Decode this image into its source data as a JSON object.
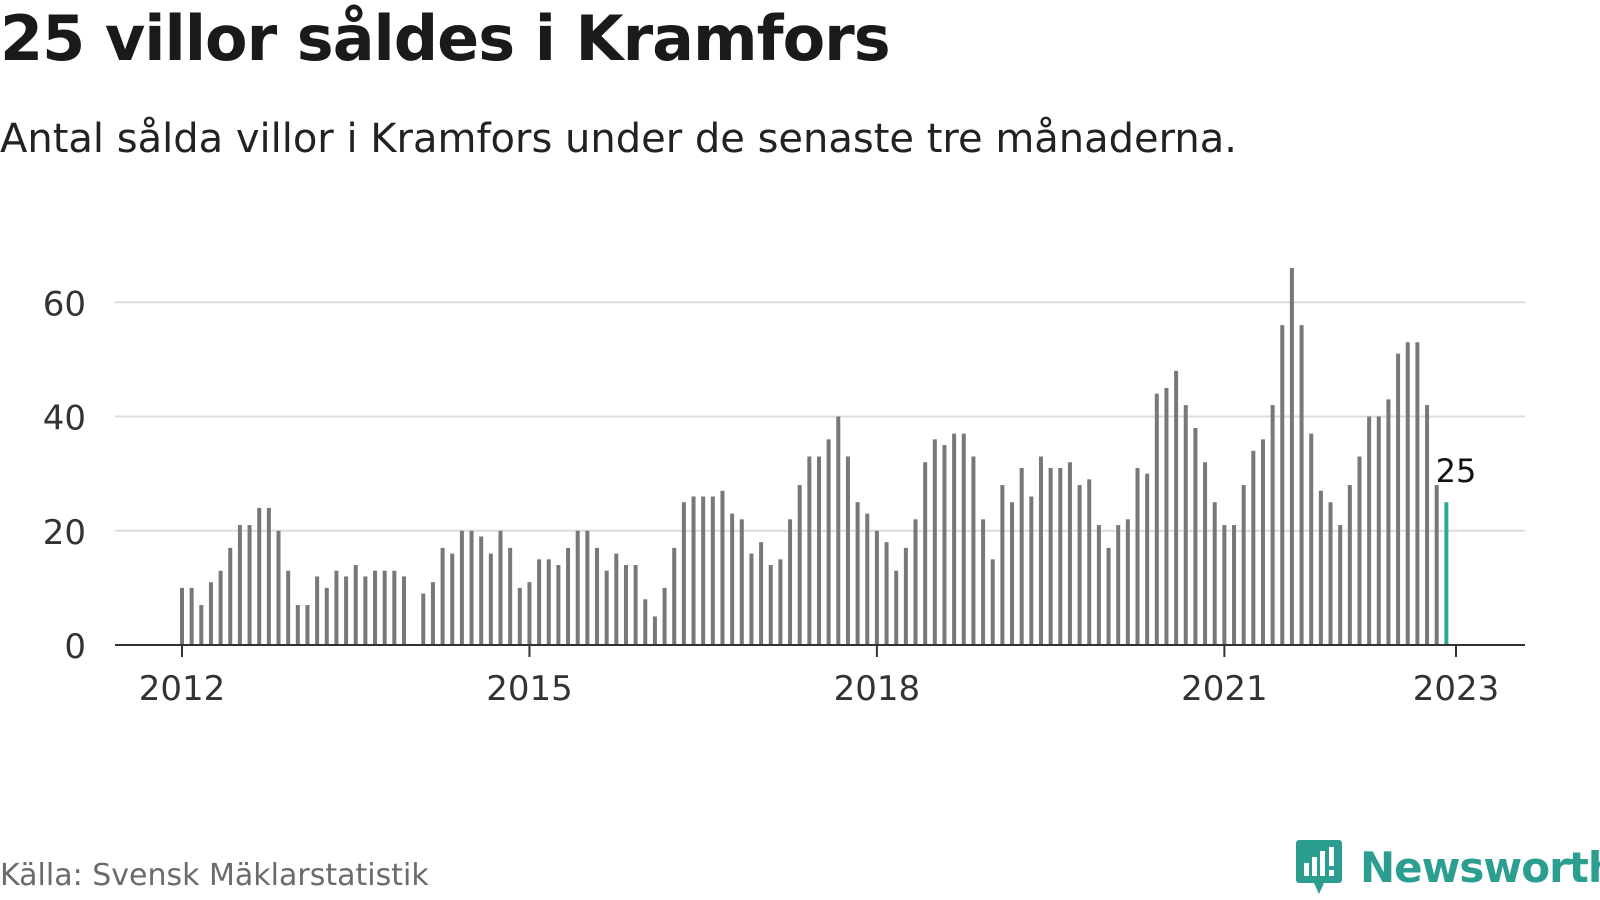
{
  "header": {
    "title": "25 villor såldes i Kramfors",
    "subtitle": "Antal sålda villor i Kramfors under de senaste tre månaderna."
  },
  "footer": {
    "source": "Källa: Svensk Mäklarstatistik",
    "brand": "Newsworthy"
  },
  "colors": {
    "bar": "#77777c",
    "highlight": "#2ca89a",
    "grid": "#dcdcdc",
    "axis": "#333333",
    "brand": "#2c9e90"
  },
  "chart_data": {
    "type": "bar",
    "title": "25 villor såldes i Kramfors",
    "subtitle": "Antal sålda villor i Kramfors under de senaste tre månaderna.",
    "xlabel": "",
    "ylabel": "",
    "ylim": [
      0,
      66
    ],
    "yticks": [
      0,
      20,
      40,
      60
    ],
    "grid": true,
    "x_start": "2012-01",
    "x_end": "2023-01",
    "x_ticks": [
      {
        "label": "2012",
        "date": "2012-01"
      },
      {
        "label": "2015",
        "date": "2015-01"
      },
      {
        "label": "2018",
        "date": "2018-01"
      },
      {
        "label": "2021",
        "date": "2021-01"
      },
      {
        "label": "2023",
        "date": "2023-01"
      }
    ],
    "series": [
      {
        "values": [
          10,
          10,
          7,
          11,
          13,
          17,
          21,
          21,
          24,
          24,
          20,
          13,
          7,
          7,
          12,
          10,
          13,
          12,
          14,
          12,
          13,
          13,
          13,
          12,
          null,
          9,
          11,
          17,
          16,
          20,
          20,
          19,
          16,
          20,
          17,
          10,
          11,
          15,
          15,
          14,
          17,
          20,
          20,
          17,
          13,
          16,
          14,
          14,
          8,
          5,
          10,
          17,
          25,
          26,
          26,
          26,
          27,
          23,
          22,
          16,
          18,
          14,
          15,
          22,
          28,
          33,
          33,
          36,
          40,
          33,
          25,
          23,
          20,
          18,
          13,
          17,
          22,
          32,
          36,
          35,
          37,
          37,
          33,
          22,
          15,
          28,
          25,
          31,
          26,
          33,
          31,
          31,
          32,
          28,
          29,
          21,
          17,
          21,
          22,
          31,
          30,
          44,
          45,
          48,
          42,
          38,
          32,
          25,
          21,
          21,
          28,
          34,
          36,
          42,
          56,
          66,
          56,
          37,
          27,
          25,
          21,
          28,
          33,
          40,
          40,
          43,
          51,
          53,
          53,
          42,
          28,
          25
        ]
      }
    ],
    "annotations": [
      {
        "date": "2023-01",
        "value": 25,
        "text": "25"
      }
    ]
  }
}
